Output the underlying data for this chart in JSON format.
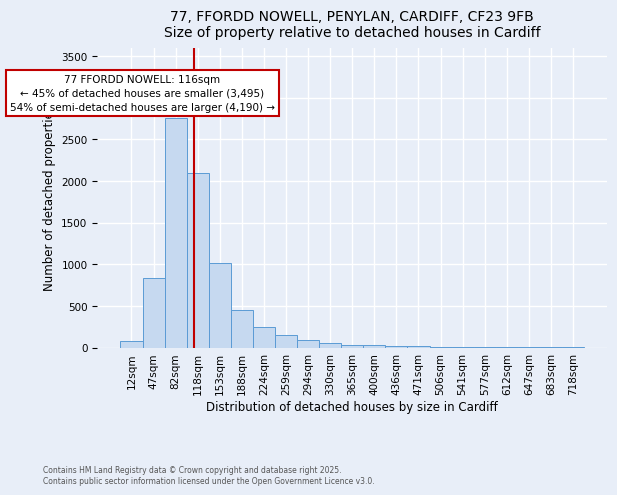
{
  "title_line1": "77, FFORDD NOWELL, PENYLAN, CARDIFF, CF23 9FB",
  "title_line2": "Size of property relative to detached houses in Cardiff",
  "xlabel": "Distribution of detached houses by size in Cardiff",
  "ylabel": "Number of detached properties",
  "categories": [
    "12sqm",
    "47sqm",
    "82sqm",
    "118sqm",
    "153sqm",
    "188sqm",
    "224sqm",
    "259sqm",
    "294sqm",
    "330sqm",
    "365sqm",
    "400sqm",
    "436sqm",
    "471sqm",
    "506sqm",
    "541sqm",
    "577sqm",
    "612sqm",
    "647sqm",
    "683sqm",
    "718sqm"
  ],
  "values": [
    80,
    830,
    2750,
    2100,
    1010,
    450,
    250,
    150,
    90,
    55,
    35,
    30,
    20,
    15,
    10,
    8,
    5,
    4,
    3,
    2,
    1
  ],
  "bar_color": "#c6d9f0",
  "bar_edge_color": "#5b9bd5",
  "vline_x_index": 2.85,
  "vline_color": "#c00000",
  "annotation_text": "77 FFORDD NOWELL: 116sqm\n← 45% of detached houses are smaller (3,495)\n54% of semi-detached houses are larger (4,190) →",
  "annotation_box_color": "white",
  "annotation_box_edge": "#c00000",
  "ylim": [
    0,
    3600
  ],
  "yticks": [
    0,
    500,
    1000,
    1500,
    2000,
    2500,
    3000,
    3500
  ],
  "footer_line1": "Contains HM Land Registry data © Crown copyright and database right 2025.",
  "footer_line2": "Contains public sector information licensed under the Open Government Licence v3.0.",
  "bg_color": "#e8eef8",
  "grid_color": "white",
  "title_fontsize": 10,
  "axis_label_fontsize": 8.5,
  "tick_fontsize": 7.5,
  "annotation_fontsize": 7.5
}
